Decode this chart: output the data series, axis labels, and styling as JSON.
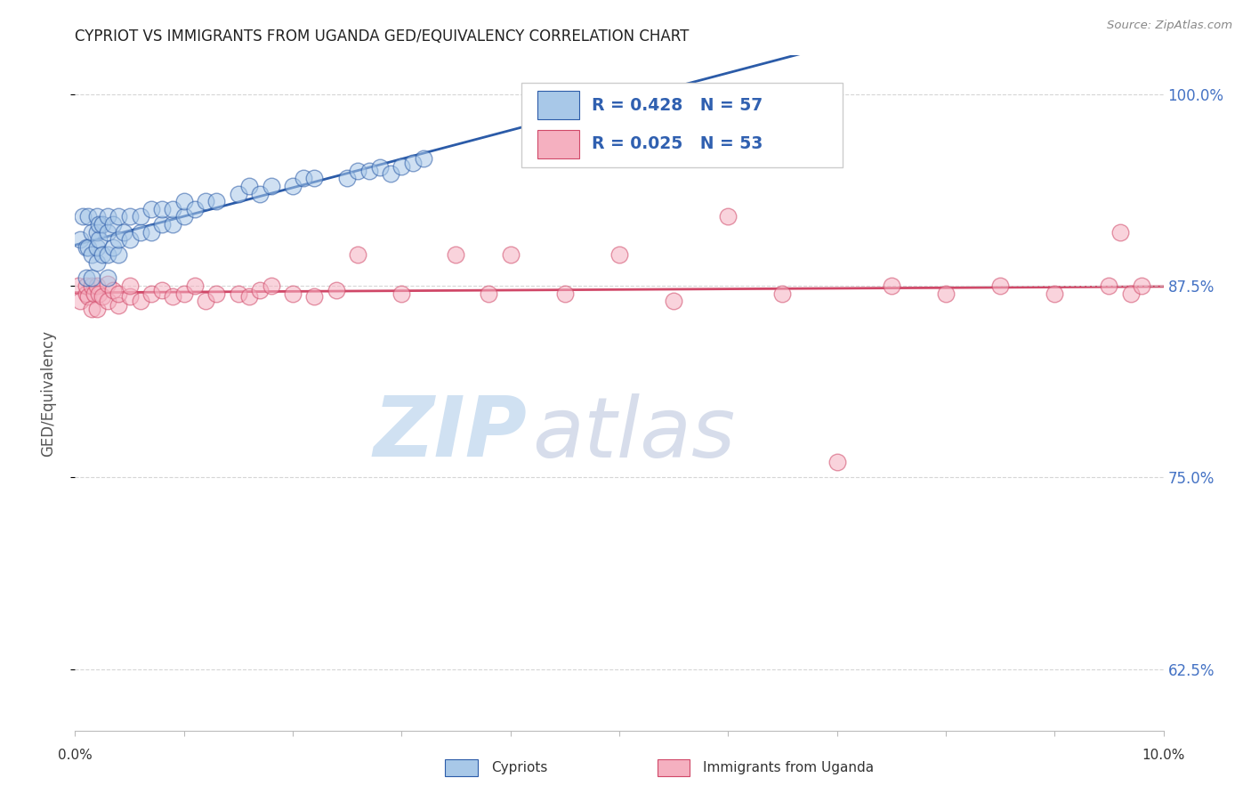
{
  "title": "CYPRIOT VS IMMIGRANTS FROM UGANDA GED/EQUIVALENCY CORRELATION CHART",
  "source": "Source: ZipAtlas.com",
  "ylabel": "GED/Equivalency",
  "yticks": [
    "62.5%",
    "75.0%",
    "87.5%",
    "100.0%"
  ],
  "ytick_vals": [
    0.625,
    0.75,
    0.875,
    1.0
  ],
  "xlim": [
    0.0,
    0.1
  ],
  "ylim": [
    0.585,
    1.025
  ],
  "r_cypriot": 0.428,
  "n_cypriot": 57,
  "r_uganda": 0.025,
  "n_uganda": 53,
  "legend_labels": [
    "Cypriots",
    "Immigrants from Uganda"
  ],
  "color_cypriot": "#A8C8E8",
  "color_uganda": "#F5B0C0",
  "line_color_cypriot": "#2B5BA8",
  "line_color_uganda": "#D04868",
  "watermark_zip": "ZIP",
  "watermark_atlas": "atlas",
  "cypriot_x": [
    0.0005,
    0.0007,
    0.001,
    0.001,
    0.0012,
    0.0012,
    0.0015,
    0.0015,
    0.0015,
    0.002,
    0.002,
    0.002,
    0.002,
    0.0022,
    0.0022,
    0.0025,
    0.0025,
    0.003,
    0.003,
    0.003,
    0.003,
    0.0035,
    0.0035,
    0.004,
    0.004,
    0.004,
    0.0045,
    0.005,
    0.005,
    0.006,
    0.006,
    0.007,
    0.007,
    0.008,
    0.008,
    0.009,
    0.009,
    0.01,
    0.01,
    0.011,
    0.012,
    0.013,
    0.015,
    0.016,
    0.017,
    0.018,
    0.02,
    0.021,
    0.022,
    0.025,
    0.026,
    0.027,
    0.028,
    0.029,
    0.03,
    0.031,
    0.032
  ],
  "cypriot_y": [
    0.905,
    0.92,
    0.88,
    0.9,
    0.9,
    0.92,
    0.88,
    0.895,
    0.91,
    0.89,
    0.9,
    0.91,
    0.92,
    0.905,
    0.915,
    0.895,
    0.915,
    0.88,
    0.895,
    0.91,
    0.92,
    0.9,
    0.915,
    0.895,
    0.905,
    0.92,
    0.91,
    0.905,
    0.92,
    0.91,
    0.92,
    0.91,
    0.925,
    0.915,
    0.925,
    0.915,
    0.925,
    0.92,
    0.93,
    0.925,
    0.93,
    0.93,
    0.935,
    0.94,
    0.935,
    0.94,
    0.94,
    0.945,
    0.945,
    0.945,
    0.95,
    0.95,
    0.952,
    0.948,
    0.953,
    0.955,
    0.958
  ],
  "uganda_x": [
    0.0003,
    0.0005,
    0.001,
    0.001,
    0.0012,
    0.0015,
    0.0015,
    0.0018,
    0.002,
    0.002,
    0.0022,
    0.0025,
    0.003,
    0.003,
    0.0035,
    0.004,
    0.004,
    0.005,
    0.005,
    0.006,
    0.007,
    0.008,
    0.009,
    0.01,
    0.011,
    0.012,
    0.013,
    0.015,
    0.016,
    0.017,
    0.018,
    0.02,
    0.022,
    0.024,
    0.026,
    0.03,
    0.035,
    0.038,
    0.04,
    0.045,
    0.05,
    0.055,
    0.06,
    0.065,
    0.07,
    0.075,
    0.08,
    0.085,
    0.09,
    0.095,
    0.096,
    0.097,
    0.098
  ],
  "uganda_y": [
    0.875,
    0.865,
    0.87,
    0.875,
    0.868,
    0.86,
    0.875,
    0.87,
    0.86,
    0.875,
    0.87,
    0.868,
    0.865,
    0.876,
    0.872,
    0.862,
    0.87,
    0.868,
    0.875,
    0.865,
    0.87,
    0.872,
    0.868,
    0.87,
    0.875,
    0.865,
    0.87,
    0.87,
    0.868,
    0.872,
    0.875,
    0.87,
    0.868,
    0.872,
    0.895,
    0.87,
    0.895,
    0.87,
    0.895,
    0.87,
    0.895,
    0.865,
    0.92,
    0.87,
    0.76,
    0.875,
    0.87,
    0.875,
    0.87,
    0.875,
    0.91,
    0.87,
    0.875
  ]
}
